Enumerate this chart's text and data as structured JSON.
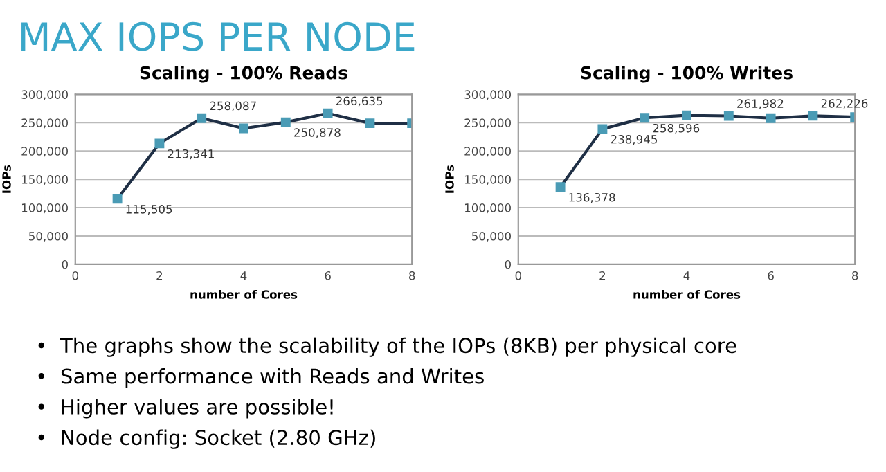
{
  "chart_data": [
    {
      "type": "other",
      "title": "MAX IOPS PER NODE",
      "annotations": [
        "•  The graphs show the scalability of the IOPs (8KB) per physical core",
        "•  Same performance with Reads and Writes",
        "•  Higher values are possible!",
        "•  Node config: Socket (2.80 GHz)"
      ]
    },
    {
      "type": "line",
      "title": "Scaling - 100% Reads",
      "xlabel": "number of Cores",
      "ylabel": "IOPs",
      "x": [
        1,
        2,
        3,
        4,
        5,
        6,
        7,
        8
      ],
      "xlim": [
        0,
        8
      ],
      "xticks": [
        0,
        2,
        4,
        6,
        8
      ],
      "ylim": [
        0,
        300000
      ],
      "yticks": [
        {
          "value": 0,
          "label": "0"
        },
        {
          "value": 50000,
          "label": "50,000"
        },
        {
          "value": 100000,
          "label": "100,000"
        },
        {
          "value": 150000,
          "label": "150,000"
        },
        {
          "value": 200000,
          "label": "200,000"
        },
        {
          "value": 250000,
          "label": "250,000"
        },
        {
          "value": 300000,
          "label": "300,000"
        }
      ],
      "grid": "y",
      "marker": "square",
      "series": [
        {
          "color": "#1f2f45",
          "values": [
            115505,
            213341,
            258087,
            240000,
            250878,
            266635,
            249000,
            249000
          ],
          "value_labels": [
            "115,505",
            "213,341",
            "258,087",
            null,
            "250,878",
            "266,635",
            null,
            null
          ]
        }
      ]
    },
    {
      "type": "line",
      "title": "Scaling - 100% Writes",
      "xlabel": "number of Cores",
      "ylabel": "IOPs",
      "x": [
        1,
        2,
        3,
        4,
        5,
        6,
        7,
        8
      ],
      "xlim": [
        0,
        8
      ],
      "xticks": [
        0,
        2,
        4,
        6,
        8
      ],
      "ylim": [
        0,
        300000
      ],
      "yticks": [
        {
          "value": 0,
          "label": "0"
        },
        {
          "value": 50000,
          "label": "50,000"
        },
        {
          "value": 100000,
          "label": "100,000"
        },
        {
          "value": 150000,
          "label": "150,000"
        },
        {
          "value": 200000,
          "label": "200,000"
        },
        {
          "value": 250000,
          "label": "250,000"
        },
        {
          "value": 300000,
          "label": "300,000"
        }
      ],
      "grid": "y",
      "marker": "square",
      "series": [
        {
          "color": "#1f2f45",
          "values": [
            136378,
            238945,
            258596,
            263000,
            261982,
            258000,
            262226,
            260000
          ],
          "value_labels": [
            "136,378",
            "238,945",
            "258,596",
            null,
            "261,982",
            null,
            "262,226",
            null
          ]
        }
      ]
    }
  ]
}
